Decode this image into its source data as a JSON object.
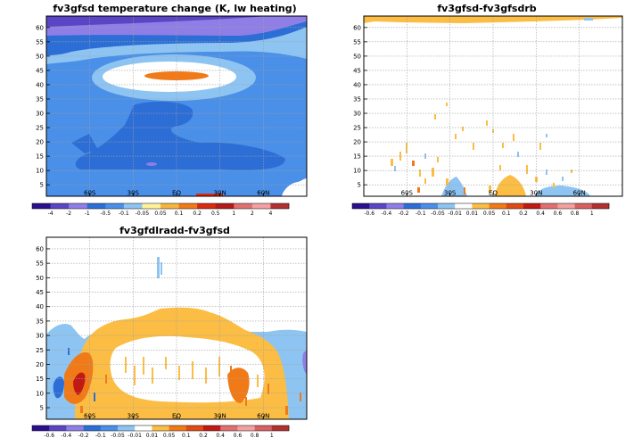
{
  "chart_data": [
    {
      "type": "heatmap",
      "title": "fv3gfsd  temperature change (K, lw heating)",
      "x_ticks": [
        "60S",
        "30S",
        "EQ",
        "30N",
        "60N"
      ],
      "x_tick_values": [
        -60,
        -30,
        0,
        30,
        60
      ],
      "y_ticks": [
        "5",
        "10",
        "15",
        "20",
        "25",
        "30",
        "35",
        "40",
        "45",
        "50",
        "55",
        "60"
      ],
      "xlim": [
        -90,
        90
      ],
      "ylim": [
        1,
        64
      ],
      "grid": true,
      "colorbar_labels": [
        "-4",
        "-2",
        "-1",
        "-0.5",
        "-0.1",
        "-0.05",
        "0.05",
        "0.1",
        "0.2",
        "0.5",
        "1",
        "2",
        "4"
      ],
      "colorbar_colors": [
        "#2a0f8e",
        "#5a46c4",
        "#8f7ee6",
        "#2d6ed6",
        "#4a8fe8",
        "#8ec4f2",
        "#fff39a",
        "#f5b641",
        "#f07a18",
        "#d92a14",
        "#b41a1a",
        "#e07070",
        "#f3a0a0",
        "#b23030"
      ],
      "background": "#4a8fe8"
    },
    {
      "type": "heatmap",
      "title": "fv3gfsd-fv3gfsdrb",
      "x_ticks": [
        "60S",
        "30S",
        "EQ",
        "30N",
        "60N"
      ],
      "x_tick_values": [
        -60,
        -30,
        0,
        30,
        60
      ],
      "y_ticks": [
        "5",
        "10",
        "15",
        "20",
        "25",
        "30",
        "35",
        "40",
        "45",
        "50",
        "55",
        "60"
      ],
      "xlim": [
        -90,
        90
      ],
      "ylim": [
        1,
        64
      ],
      "grid": true,
      "colorbar_labels": [
        "-0.6",
        "-0.4",
        "-0.2",
        "-0.1",
        "-0.05",
        "-0.01",
        "0.01",
        "0.05",
        "0.1",
        "0.2",
        "0.4",
        "0.6",
        "0.8",
        "1"
      ],
      "colorbar_colors": [
        "#2a0f8e",
        "#5a46c4",
        "#8f7ee6",
        "#2d6ed6",
        "#4a8fe8",
        "#8ec4f2",
        "#ffffff",
        "#fbbd44",
        "#f07a18",
        "#e04a14",
        "#c01a14",
        "#e07070",
        "#f3a0a0",
        "#d86060",
        "#b23030"
      ],
      "background": "#ffffff"
    },
    {
      "type": "heatmap",
      "title": "fv3gfdlradd-fv3gfsd",
      "x_ticks": [
        "60S",
        "30S",
        "EQ",
        "30N",
        "60N"
      ],
      "x_tick_values": [
        -60,
        -30,
        0,
        30,
        60
      ],
      "y_ticks": [
        "5",
        "10",
        "15",
        "20",
        "25",
        "30",
        "35",
        "40",
        "45",
        "50",
        "55",
        "60"
      ],
      "xlim": [
        -90,
        90
      ],
      "ylim": [
        1,
        64
      ],
      "grid": true,
      "colorbar_labels": [
        "-0.6",
        "-0.4",
        "-0.2",
        "-0.1",
        "-0.05",
        "-0.01",
        "0.01",
        "0.05",
        "0.1",
        "0.2",
        "0.4",
        "0.6",
        "0.8",
        "1"
      ],
      "colorbar_colors": [
        "#2a0f8e",
        "#5a46c4",
        "#8f7ee6",
        "#2d6ed6",
        "#4a8fe8",
        "#8ec4f2",
        "#ffffff",
        "#fbbd44",
        "#f07a18",
        "#e04a14",
        "#c01a14",
        "#e07070",
        "#f3a0a0",
        "#d86060",
        "#b23030"
      ],
      "background": "#ffffff"
    }
  ]
}
